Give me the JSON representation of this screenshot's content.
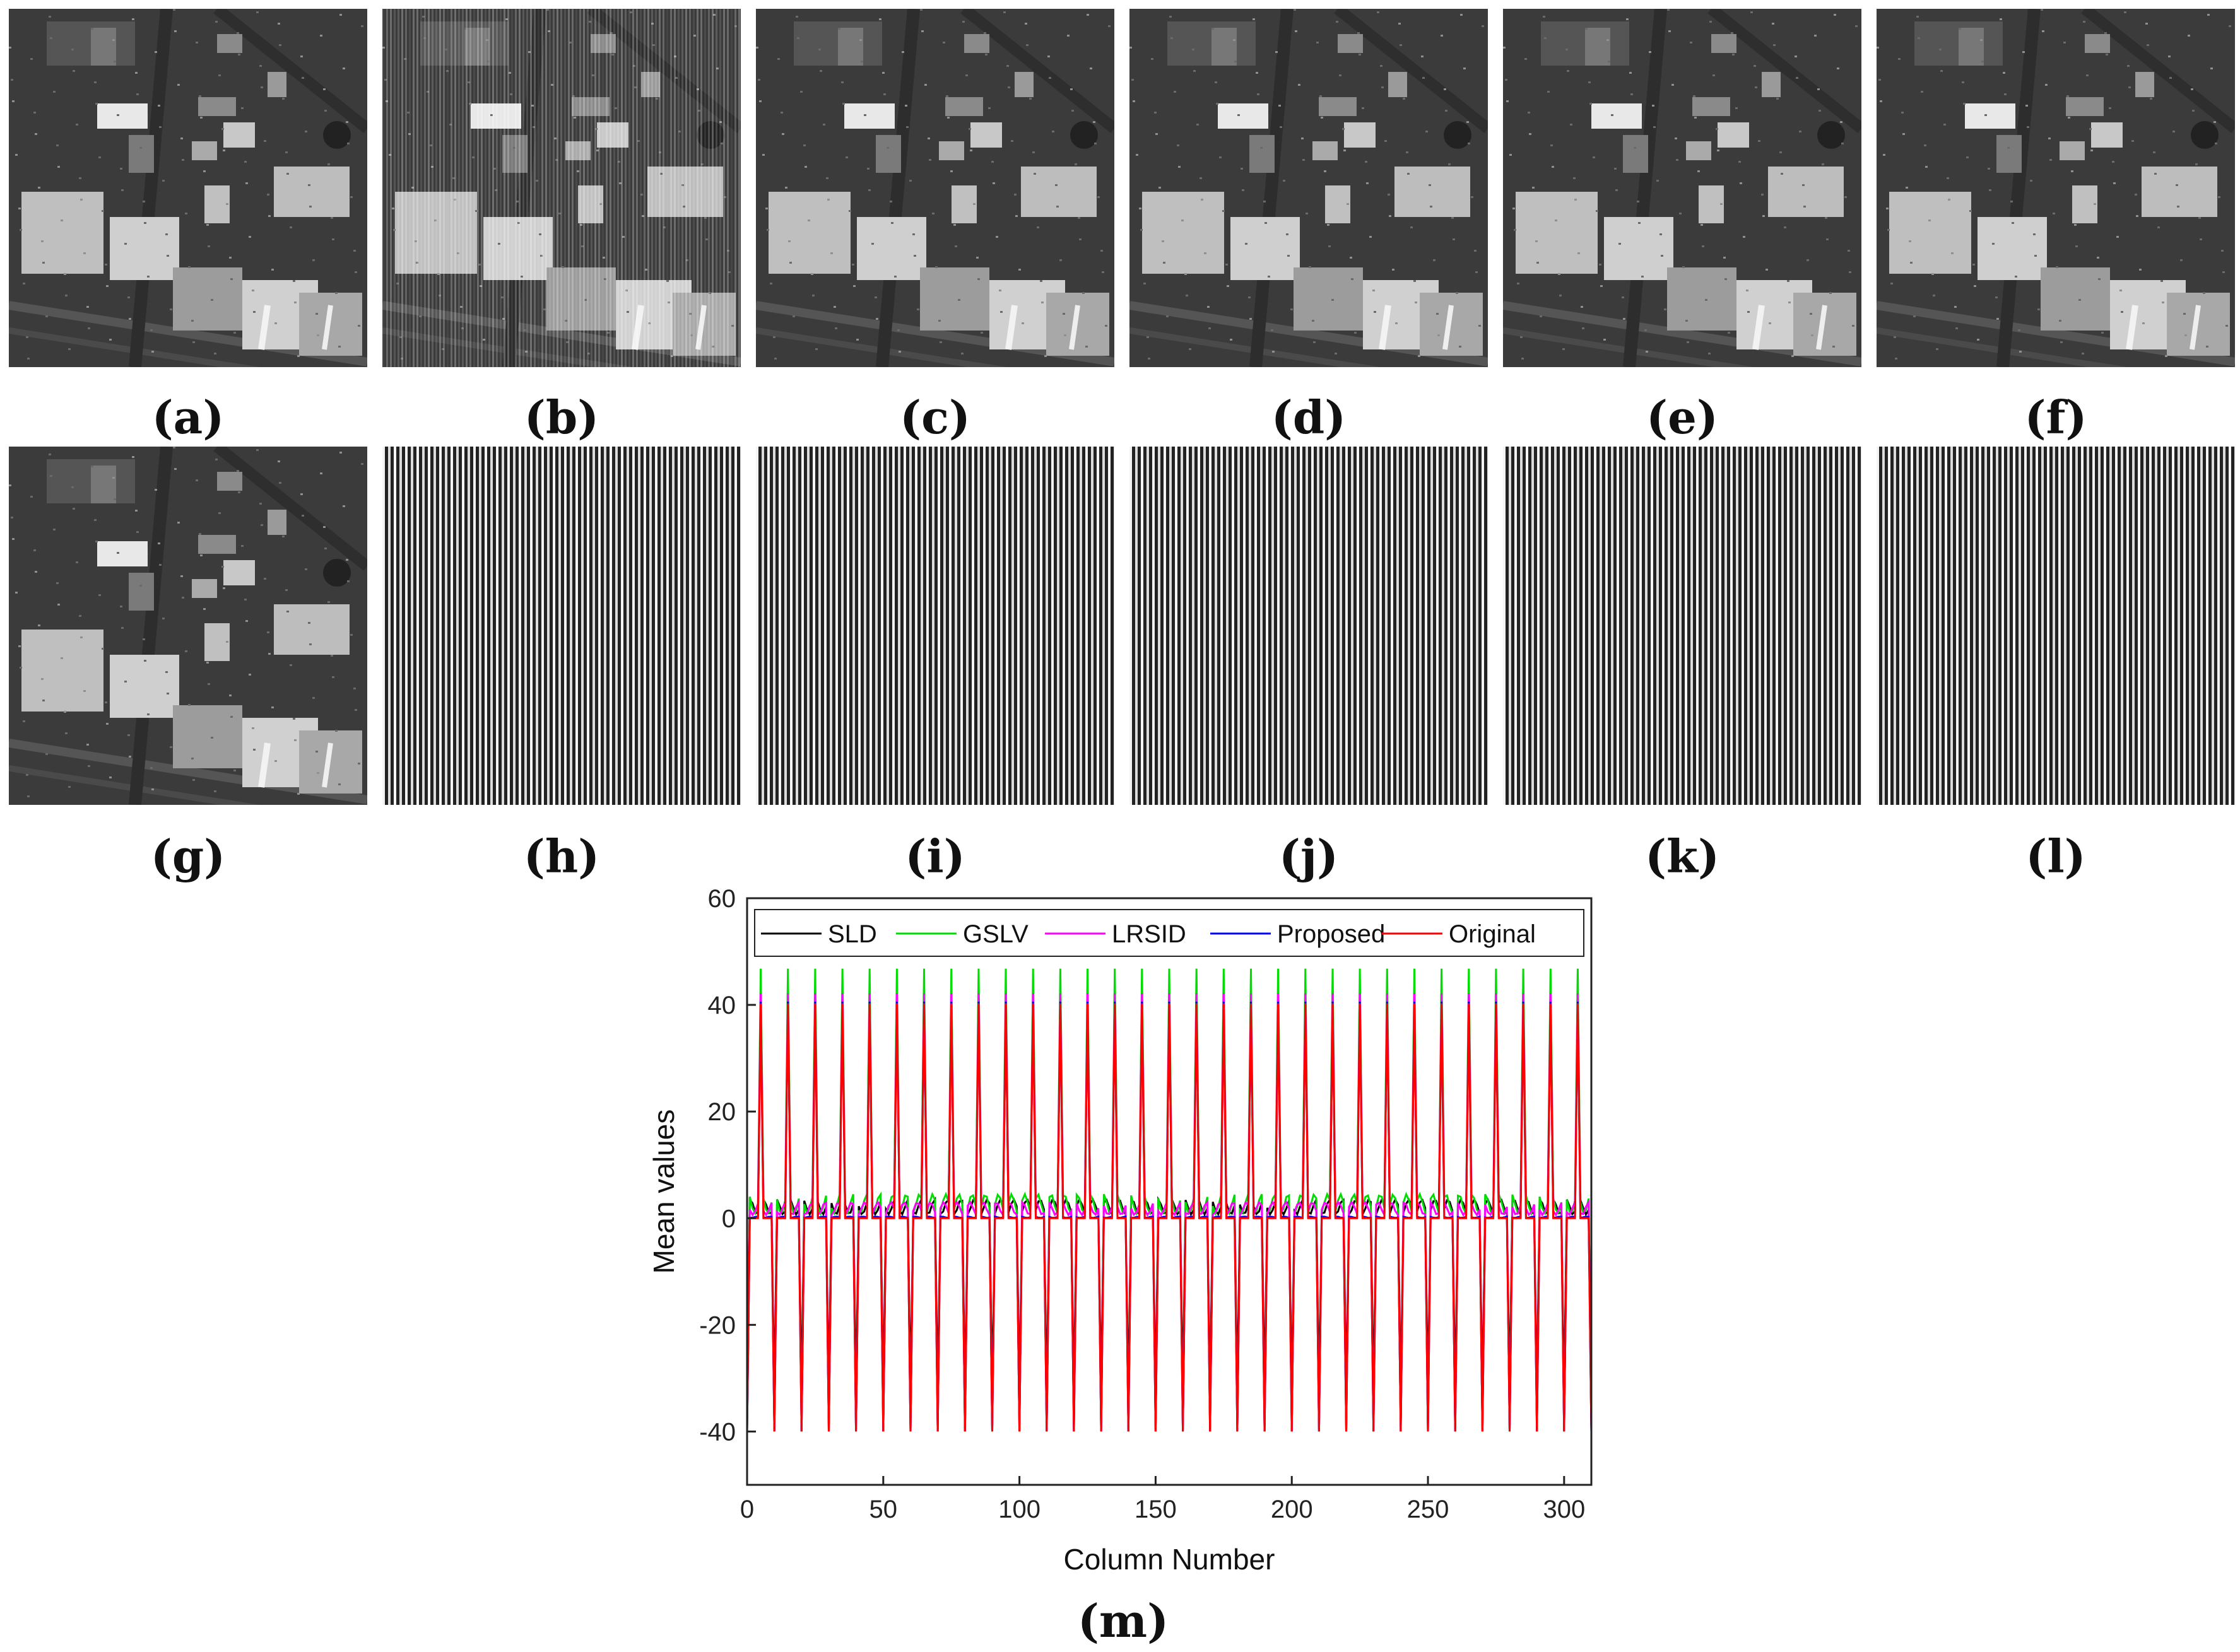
{
  "figure": {
    "panel_labels": [
      "(a)",
      "(b)",
      "(c)",
      "(d)",
      "(e)",
      "(f)",
      "(g)",
      "(h)",
      "(i)",
      "(j)",
      "(k)",
      "(l)"
    ],
    "chart_label": "(m)"
  },
  "chart_data": {
    "type": "line",
    "title": "",
    "xlabel": "Column Number",
    "ylabel": "Mean values",
    "xlim": [
      0,
      310
    ],
    "ylim": [
      -50,
      60
    ],
    "xticks": [
      0,
      50,
      100,
      150,
      200,
      250,
      300
    ],
    "yticks": [
      -40,
      -20,
      0,
      20,
      40,
      60
    ],
    "grid": false,
    "legend_position": "top",
    "pattern": {
      "period": 10,
      "peak_columns": [
        5,
        15,
        25,
        35,
        45,
        55,
        65,
        75,
        85,
        95,
        105,
        115,
        125,
        135,
        145,
        155,
        165,
        175,
        185,
        195,
        205,
        215,
        225,
        235,
        245,
        255,
        265,
        275,
        285,
        295,
        305
      ],
      "trough_columns": [
        0,
        10,
        20,
        30,
        40,
        50,
        60,
        70,
        80,
        90,
        100,
        110,
        120,
        130,
        140,
        150,
        160,
        170,
        180,
        190,
        200,
        210,
        220,
        230,
        240,
        250,
        260,
        270,
        280,
        290,
        300,
        310
      ]
    },
    "series": [
      {
        "name": "SLD",
        "color": "#000000",
        "peak": 41,
        "trough": -33,
        "baseline": 3.5
      },
      {
        "name": "GSLV",
        "color": "#00dd00",
        "peak": 45,
        "trough": -40,
        "baseline": 4.5
      },
      {
        "name": "LRSID",
        "color": "#ff00ff",
        "peak": 42,
        "trough": -40,
        "baseline": 3.0
      },
      {
        "name": "Proposed",
        "color": "#0000ff",
        "peak": 40,
        "trough": -40,
        "baseline": 0.3
      },
      {
        "name": "Original",
        "color": "#ff0000",
        "peak": 40,
        "trough": -40,
        "baseline": 0
      }
    ]
  }
}
